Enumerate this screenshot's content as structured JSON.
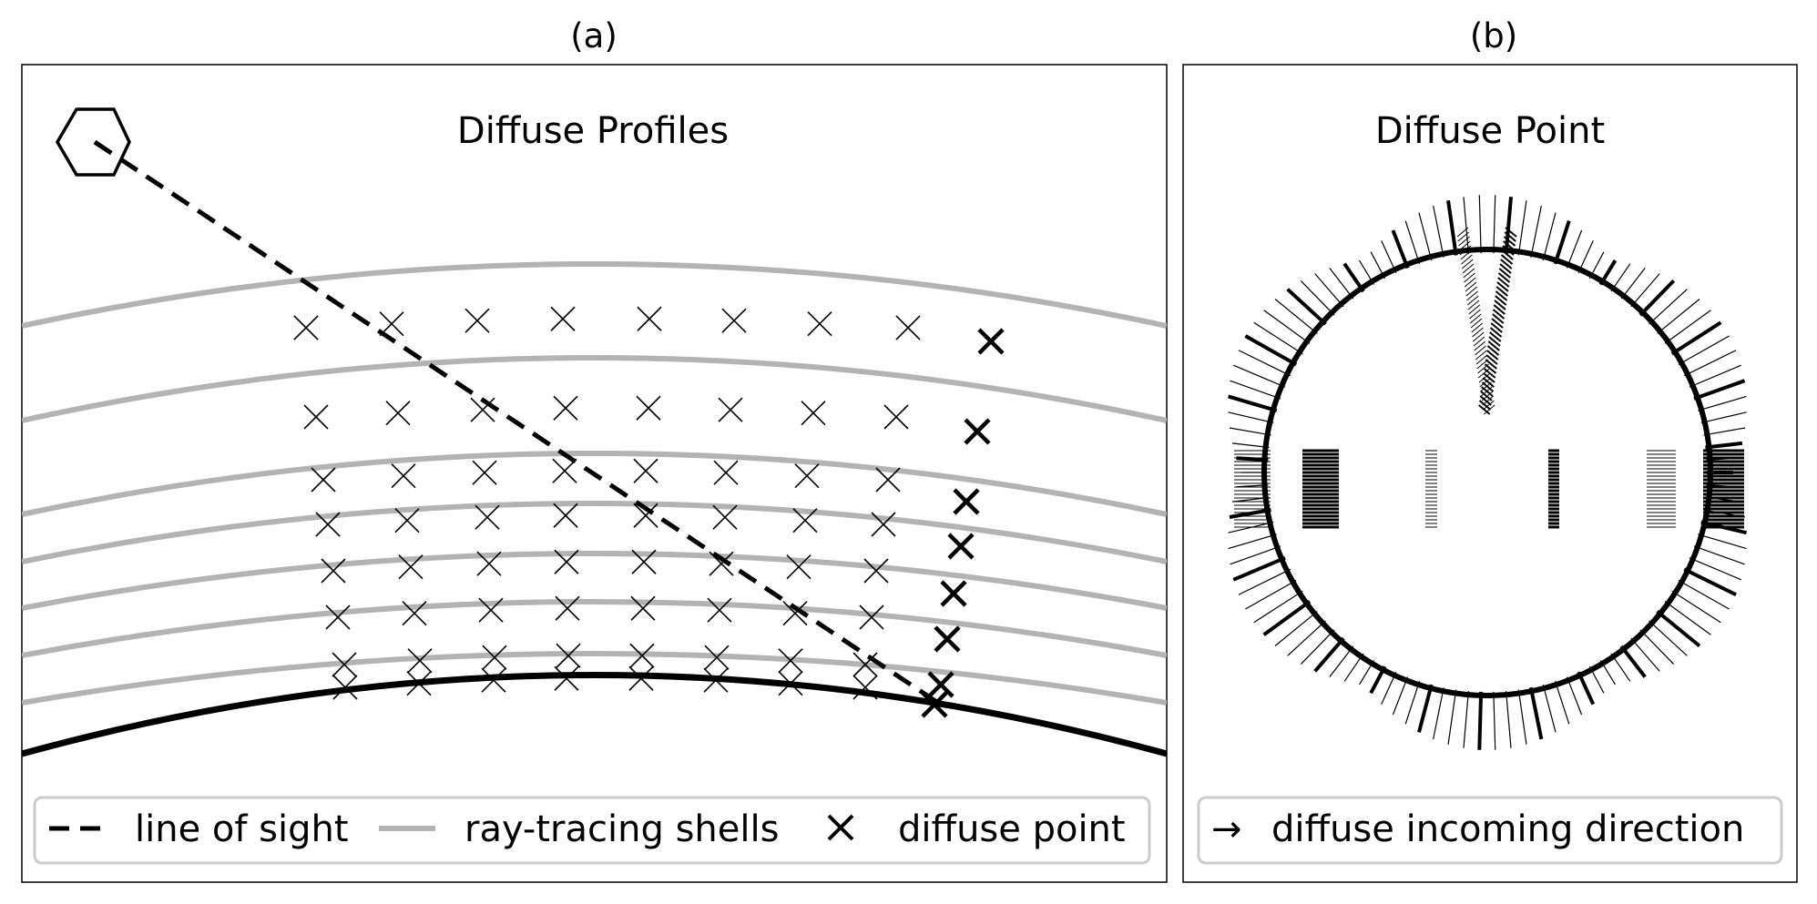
{
  "panel_a": {
    "label": "(a)",
    "title": "Diffuse Profiles",
    "legend": {
      "line_of_sight": "line of sight",
      "ray_tracing_shells": "ray-tracing shells",
      "diffuse_point": "diffuse point"
    }
  },
  "panel_b": {
    "label": "(b)",
    "title": "Diffuse Point",
    "legend": {
      "marker": "→",
      "diffuse_incoming_direction": "diffuse incoming direction"
    }
  },
  "colors": {
    "shell": "#b3b3b3",
    "surface": "#000000",
    "line_of_sight": "#000000",
    "frame": "#000000",
    "legend_border": "#cccccc"
  }
}
